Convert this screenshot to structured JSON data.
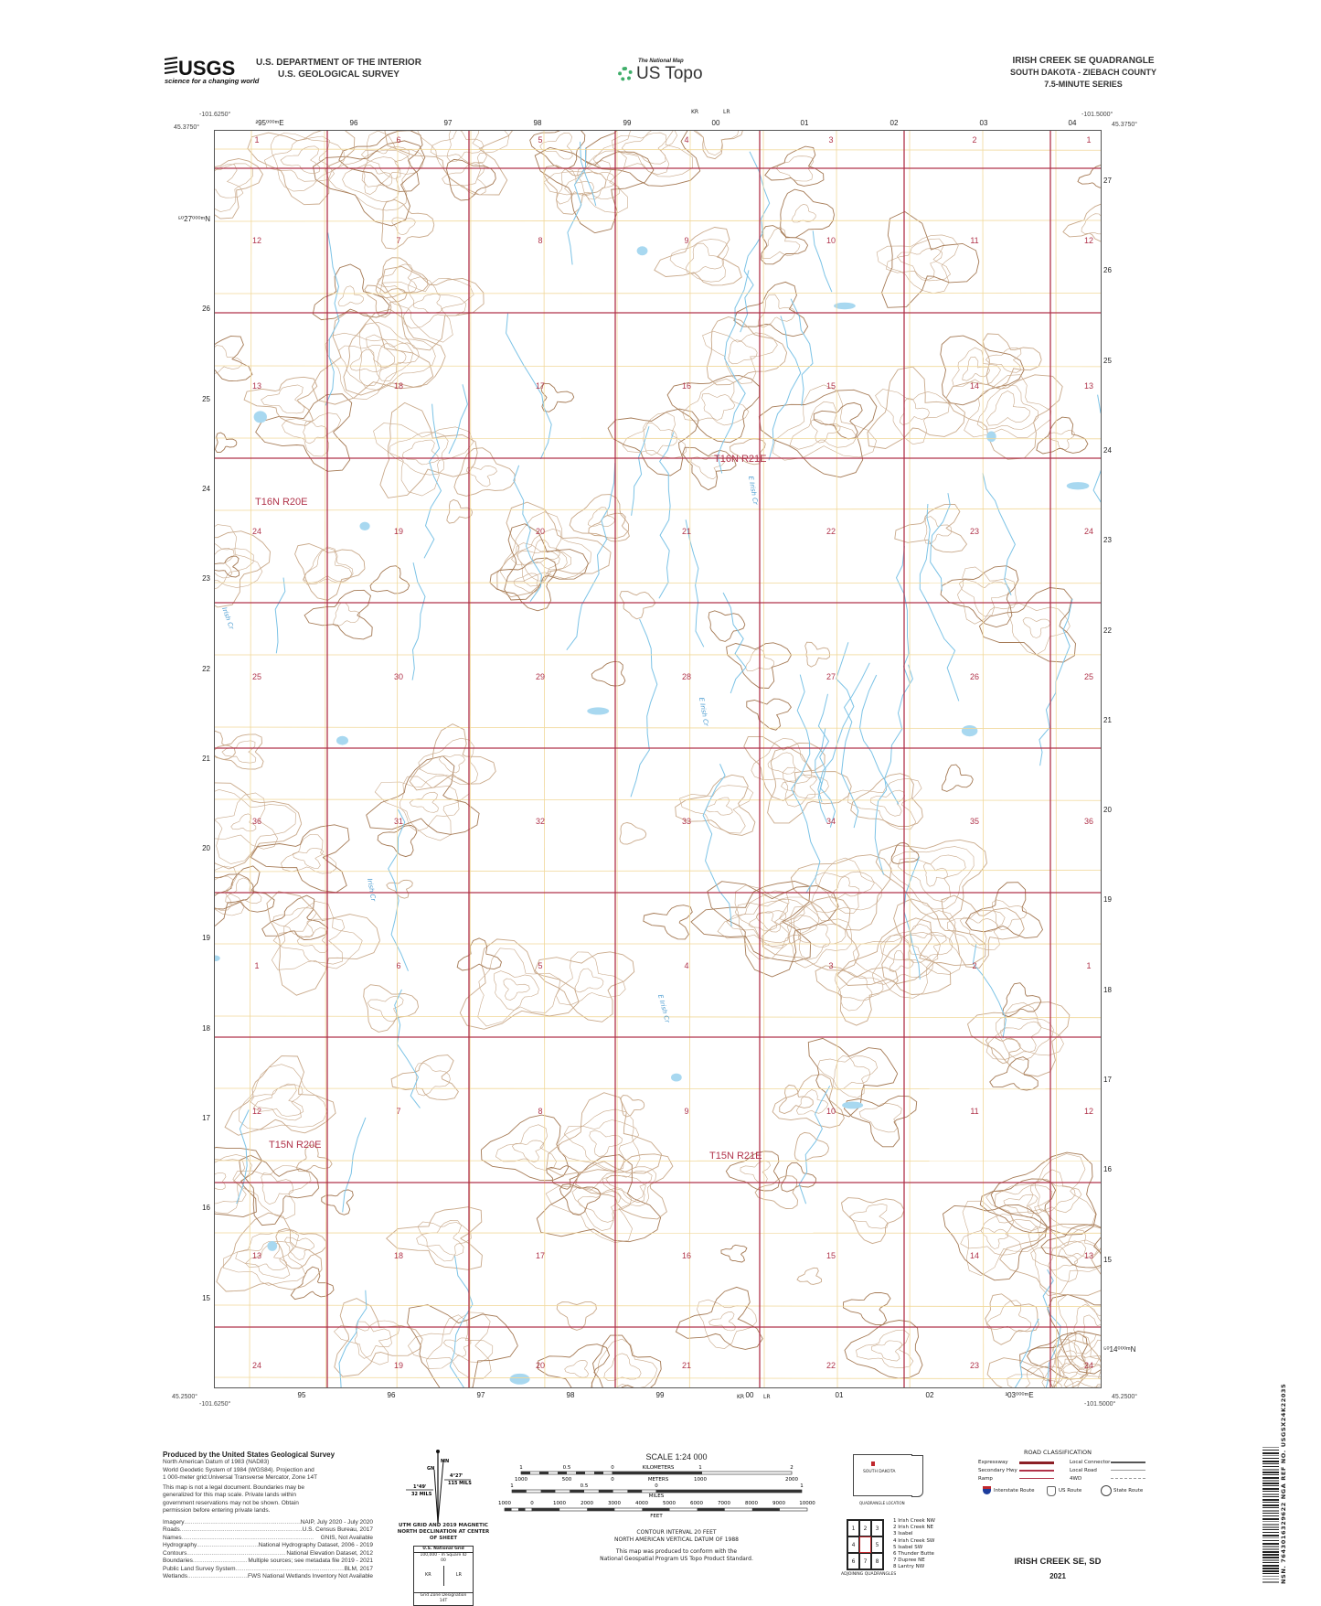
{
  "header": {
    "agency_logo": "USGS",
    "agency_tagline": "science for a changing world",
    "department": "U.S. DEPARTMENT OF THE INTERIOR",
    "survey": "U.S. GEOLOGICAL SURVEY",
    "program_small": "The National Map",
    "program": "US Topo",
    "quad_title": "IRISH CREEK SE QUADRANGLE",
    "state_county": "SOUTH DAKOTA - ZIEBACH COUNTY",
    "series": "7.5-MINUTE SERIES"
  },
  "corners": {
    "nw_lon": "-101.6250°",
    "nw_lat": "45.3750°",
    "ne_lon": "-101.5000°",
    "ne_lat": "45.3750°",
    "sw_lon": "-101.6250°",
    "sw_lat": "45.2500°",
    "se_lon": "-101.5000°",
    "se_lat": "45.2500°"
  },
  "grid": {
    "top_labels": [
      "²95⁰⁰⁰ᵐE",
      "96",
      "97",
      "98",
      "99",
      "00",
      "01",
      "02",
      "03",
      "04"
    ],
    "top_gzd": [
      "KR",
      "LR"
    ],
    "bottom_labels": [
      "95",
      "96",
      "97",
      "98",
      "99",
      "00",
      "01",
      "02",
      "³03⁰⁰⁰ᵐE"
    ],
    "bottom_gzd": [
      "KR",
      "LR"
    ],
    "left_labels": [
      "⁵⁰27⁰⁰⁰ᵐN",
      "26",
      "25",
      "24",
      "23",
      "22",
      "21",
      "20",
      "19",
      "18",
      "17",
      "16",
      "15"
    ],
    "right_labels": [
      "27",
      "26",
      "25",
      "24",
      "23",
      "22",
      "21",
      "20",
      "19",
      "18",
      "17",
      "16",
      "15",
      "⁵⁰14⁰⁰⁰ᵐN"
    ]
  },
  "sections": [
    [
      "1",
      "6",
      "5",
      "4",
      "3",
      "2",
      "1"
    ],
    [
      "12",
      "7",
      "8",
      "9",
      "10",
      "11",
      "12"
    ],
    [
      "13",
      "18",
      "17",
      "16",
      "15",
      "14",
      "13"
    ],
    [
      "24",
      "19",
      "20",
      "21",
      "22",
      "23",
      "24"
    ],
    [
      "25",
      "30",
      "29",
      "28",
      "27",
      "26",
      "25"
    ],
    [
      "36",
      "31",
      "32",
      "33",
      "34",
      "35",
      "36"
    ],
    [
      "1",
      "6",
      "5",
      "4",
      "3",
      "2",
      "1"
    ],
    [
      "12",
      "7",
      "8",
      "9",
      "10",
      "11",
      "12"
    ],
    [
      "13",
      "18",
      "17",
      "16",
      "15",
      "14",
      "13"
    ],
    [
      "24",
      "19",
      "20",
      "21",
      "22",
      "23",
      "24"
    ]
  ],
  "townships": [
    "T16N R21E",
    "T16N R20E",
    "T15N R20E",
    "T15N R21E"
  ],
  "water_labels": [
    "Irish Cr",
    "E Irish Cr",
    "E Irish Cr",
    "Irish Cr",
    "E Irish Cr"
  ],
  "colors": {
    "section_line": "#b0334a",
    "contour": "#c9a98a",
    "index_contour": "#a57a55",
    "water": "#7cc3e6",
    "plss": "#f1d89a",
    "label_red": "#b0334a"
  },
  "credits": {
    "title": "Produced by the United States Geological Survey",
    "datum_lines": [
      "North American Datum of 1983 (NAD83)",
      "World Geodetic System of 1984 (WGS84). Projection and",
      "1 000-meter grid:Universal Transverse Mercator, Zone 14T"
    ],
    "disclaimer": "This map is not a legal document. Boundaries may be generalized for this map scale. Private lands within government reservations may not be shown. Obtain permission before entering private lands.",
    "sources": [
      {
        "k": "Imagery",
        "v": "NAIP, July 2020 - July 2020"
      },
      {
        "k": "Roads",
        "v": "U.S. Census Bureau, 2017"
      },
      {
        "k": "Names",
        "v": "GNIS, Not Available"
      },
      {
        "k": "Hydrography",
        "v": "National Hydrography Dataset, 2006 - 2019"
      },
      {
        "k": "Contours",
        "v": "National Elevation Dataset, 2012"
      },
      {
        "k": "Boundaries",
        "v": "Multiple sources; see metadata file 2019 - 2021"
      },
      {
        "k": "Public Land Survey System",
        "v": "BLM, 2017"
      },
      {
        "k": "Wetlands",
        "v": "FWS National Wetlands Inventory Not Available"
      }
    ]
  },
  "declination": {
    "mn": "MN",
    "gn": "GN",
    "mn_angle": "4°27'",
    "mn_mils": "115 MILS",
    "gn_angle": "1°49'",
    "gn_mils": "32 MILS",
    "caption": "UTM GRID AND 2019 MAGNETIC NORTH DECLINATION AT CENTER OF SHEET",
    "usng_title": "U.S. National Grid",
    "usng_sub": "100,000 - m Square ID",
    "usng_00": "00",
    "usng_left": "KR",
    "usng_right": "LR",
    "gzd_label": "Grid Zone Designation",
    "gzd": "14T"
  },
  "scale": {
    "title": "SCALE 1:24 000",
    "km_labels": [
      "1",
      "0.5",
      "0",
      "KILOMETERS",
      "1",
      "2"
    ],
    "m_labels": [
      "1000",
      "500",
      "0",
      "METERS",
      "1000",
      "2000"
    ],
    "mi_labels": [
      "1",
      "0.5",
      "0",
      "1"
    ],
    "mi_unit": "MILES",
    "ft_labels": [
      "1000",
      "0",
      "1000",
      "2000",
      "3000",
      "4000",
      "5000",
      "6000",
      "7000",
      "8000",
      "9000",
      "10000"
    ],
    "ft_unit": "FEET",
    "contour": "CONTOUR INTERVAL 20 FEET",
    "vdatum": "NORTH AMERICAN VERTICAL DATUM OF 1988",
    "standard1": "This map was produced to conform with the",
    "standard2": "National Geospatial Program US Topo Product Standard."
  },
  "location": {
    "state": "SOUTH DAKOTA",
    "caption": "QUADRANGLE LOCATION"
  },
  "adjoining": {
    "cells": [
      "1",
      "2",
      "3",
      "4",
      "",
      "5",
      "6",
      "7",
      "8"
    ],
    "names": [
      "1 Irish Creek NW",
      "2 Irish Creek NE",
      "3 Isabel",
      "4 Irish Creek SW",
      "5 Isabel SW",
      "6 Thunder Butte",
      "7 Dupree NE",
      "8 Lantry NW"
    ],
    "caption": "ADJOINING QUADRANGLES"
  },
  "roads": {
    "title": "ROAD CLASSIFICATION",
    "left": [
      "Expressway",
      "Secondary Hwy",
      "Ramp"
    ],
    "right": [
      "Local Connector",
      "Local Road",
      "4WD"
    ],
    "shields": [
      "Interstate Route",
      "US Route",
      "State Route"
    ]
  },
  "footer": {
    "name": "IRISH CREEK SE,  SD",
    "year": "2021",
    "barcode_text": "NSN. 7643016329622 NGA REF NO. USGSX24K22035"
  }
}
